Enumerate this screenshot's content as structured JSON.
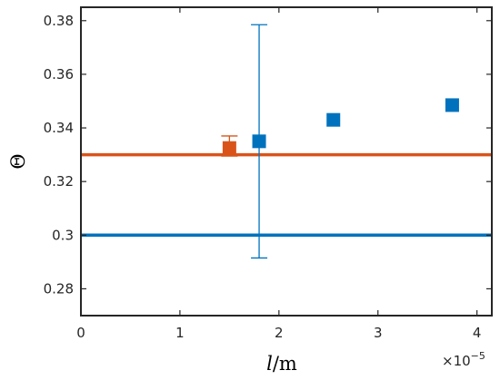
{
  "chart_data": {
    "type": "scatter",
    "xlabel_italic": "l",
    "xlabel_unit": "/m",
    "ylabel": "Θ",
    "x_exponent_base": "×10",
    "x_exponent_power": "−5",
    "xlim": [
      0,
      4.15
    ],
    "ylim": [
      0.27,
      0.385
    ],
    "x_ticks": [
      0,
      1,
      2,
      3,
      4
    ],
    "x_tick_labels": [
      "0",
      "1",
      "2",
      "3",
      "4"
    ],
    "y_ticks": [
      0.28,
      0.3,
      0.32,
      0.34,
      0.36,
      0.38
    ],
    "y_tick_labels": [
      "0.28",
      "0.3",
      "0.32",
      "0.34",
      "0.36",
      "0.38"
    ],
    "grid": false,
    "hlines": [
      {
        "y": 0.33,
        "color": "#d95319"
      },
      {
        "y": 0.3,
        "color": "#0072bd"
      }
    ],
    "series": [
      {
        "color": "#0072bd",
        "marker": "square",
        "points": [
          {
            "x": 1.8,
            "y": 0.335,
            "err_low": 0.2915,
            "err_high": 0.3785
          },
          {
            "x": 2.55,
            "y": 0.343
          },
          {
            "x": 3.75,
            "y": 0.3485
          }
        ]
      },
      {
        "color": "#d95319",
        "marker": "square",
        "points": [
          {
            "x": 1.5,
            "y": 0.3325,
            "err_low": 0.3295,
            "err_high": 0.337
          }
        ]
      }
    ]
  }
}
